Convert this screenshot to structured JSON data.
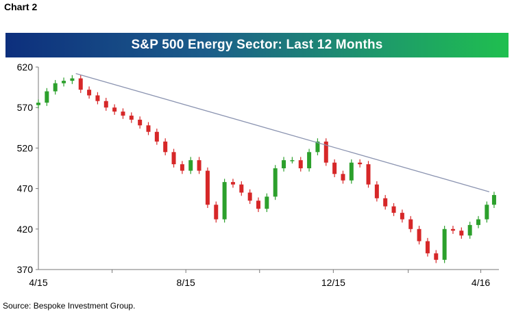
{
  "header": {
    "label": "Chart 2"
  },
  "chart_data": {
    "type": "candlestick",
    "title": "S&P 500 Energy Sector: Last 12 Months",
    "xlabel": "",
    "ylabel": "",
    "ylim": [
      370,
      620
    ],
    "y_ticks": [
      620,
      570,
      520,
      470,
      420,
      370
    ],
    "x_ticks": [
      "4/15",
      "8/15",
      "12/15",
      "4/16"
    ],
    "up_color": "#2ca02c",
    "down_color": "#d62728",
    "trendline": {
      "from": [
        "5/2/15",
        612
      ],
      "to": [
        "4/8/16",
        466
      ],
      "color": "#8a93b0"
    },
    "series": [
      {
        "x": [
          "4/1/15",
          "4/8/15",
          "4/15/15",
          "4/22/15",
          "4/29/15",
          "5/6/15",
          "5/13/15",
          "5/20/15",
          "5/27/15",
          "6/3/15",
          "6/10/15",
          "6/17/15",
          "6/24/15",
          "7/1/15",
          "7/8/15",
          "7/15/15",
          "7/22/15",
          "7/29/15",
          "8/5/15",
          "8/12/15",
          "8/19/15",
          "8/26/15",
          "9/2/15",
          "9/9/15",
          "9/16/15",
          "9/23/15",
          "9/30/15",
          "10/7/15",
          "10/14/15",
          "10/21/15",
          "10/28/15",
          "11/4/15",
          "11/11/15",
          "11/18/15",
          "11/25/15",
          "12/2/15",
          "12/9/15",
          "12/16/15",
          "12/23/15",
          "12/30/15",
          "1/6/16",
          "1/13/16",
          "1/20/16",
          "1/27/16",
          "2/3/16",
          "2/10/16",
          "2/17/16",
          "2/24/16",
          "3/2/16",
          "3/9/16",
          "3/16/16",
          "3/23/16",
          "3/30/16",
          "4/6/16",
          "4/12/16"
        ],
        "close": [
          576,
          590,
          600,
          603,
          606,
          592,
          585,
          578,
          570,
          565,
          560,
          555,
          548,
          540,
          528,
          515,
          500,
          492,
          505,
          492,
          450,
          432,
          478,
          475,
          465,
          455,
          445,
          460,
          495,
          505,
          505,
          495,
          515,
          528,
          502,
          488,
          480,
          502,
          500,
          475,
          458,
          448,
          440,
          432,
          420,
          405,
          390,
          382,
          420,
          418,
          412,
          425,
          432,
          450,
          462
        ]
      }
    ],
    "source": "Source: Bespoke Investment Group."
  }
}
